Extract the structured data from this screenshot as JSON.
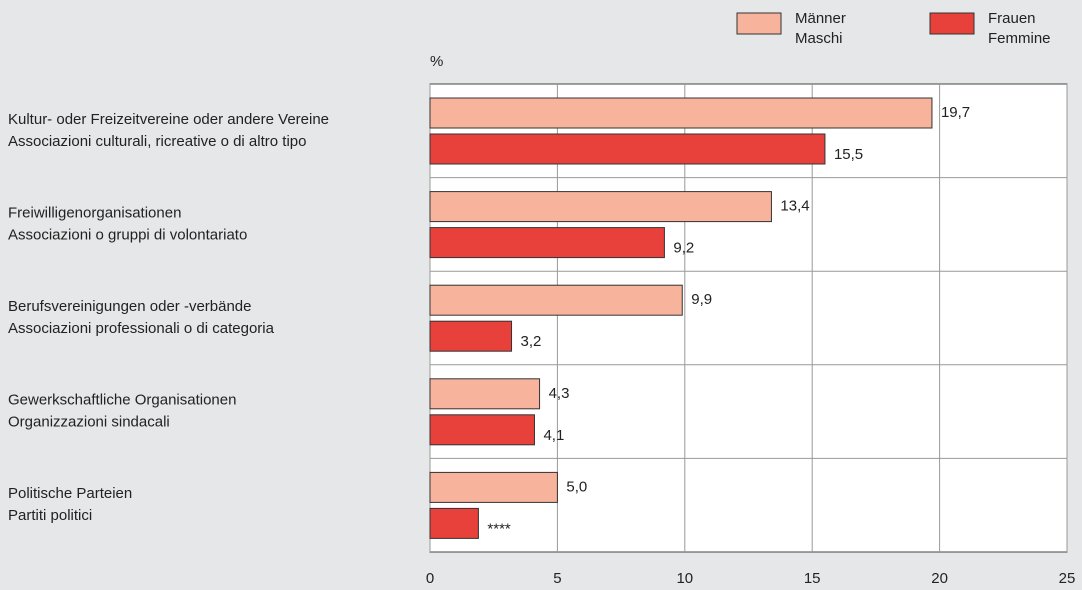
{
  "chart_data": {
    "type": "hbar",
    "axis_label": "%",
    "categories": [
      [
        "Kultur- oder Freizeitvereine oder andere Vereine",
        "Associazioni culturali, ricreative o di altro tipo"
      ],
      [
        "Freiwilligenorganisationen",
        "Associazioni o gruppi di volontariato"
      ],
      [
        "Berufsvereinigungen oder -verbände",
        "Associazioni professionali o di categoria"
      ],
      [
        "Gewerkschaftliche Organisationen",
        "Organizzazioni sindacali"
      ],
      [
        "Politische Parteien",
        "Partiti politici"
      ]
    ],
    "series": [
      {
        "name": [
          "Männer",
          "Maschi"
        ],
        "color": "#f7b39b",
        "values": [
          19.7,
          13.4,
          9.9,
          4.3,
          5.0
        ],
        "value_labels": [
          "19,7",
          "13,4",
          "9,9",
          "4,3",
          "5,0"
        ]
      },
      {
        "name": [
          "Frauen",
          "Femmine"
        ],
        "color": "#e8403a",
        "values": [
          15.5,
          9.2,
          3.2,
          4.1,
          1.9
        ],
        "value_labels": [
          "15,5",
          "9,2",
          "3,2",
          "4,1",
          "****"
        ]
      }
    ],
    "xlim": [
      0,
      25
    ],
    "xticks": [
      0,
      5,
      10,
      15,
      20,
      25
    ],
    "grid": true
  }
}
